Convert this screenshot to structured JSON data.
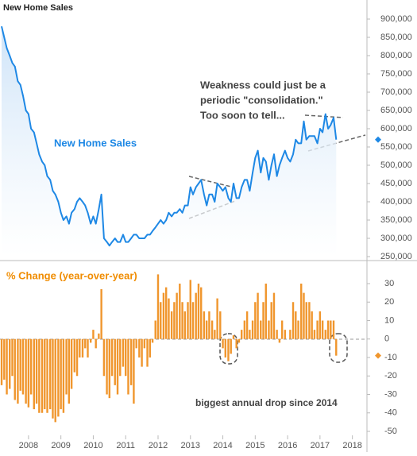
{
  "chart_data": [
    {
      "type": "line",
      "title": "New Home Sales",
      "annotations": [
        "Weakness could just be a",
        "periodic \"consolidation.\"",
        "Too soon to tell..."
      ],
      "x": [
        2007.17,
        2007.25,
        2007.33,
        2007.42,
        2007.5,
        2007.58,
        2007.67,
        2007.75,
        2007.83,
        2007.92,
        2008,
        2008.08,
        2008.17,
        2008.25,
        2008.33,
        2008.42,
        2008.5,
        2008.58,
        2008.67,
        2008.75,
        2008.83,
        2008.92,
        2009,
        2009.08,
        2009.17,
        2009.25,
        2009.33,
        2009.42,
        2009.5,
        2009.58,
        2009.67,
        2009.75,
        2009.83,
        2009.92,
        2010,
        2010.08,
        2010.17,
        2010.25,
        2010.33,
        2010.42,
        2010.5,
        2010.58,
        2010.67,
        2010.75,
        2010.83,
        2010.92,
        2011,
        2011.08,
        2011.17,
        2011.25,
        2011.33,
        2011.42,
        2011.5,
        2011.58,
        2011.67,
        2011.75,
        2011.83,
        2011.92,
        2012,
        2012.08,
        2012.17,
        2012.25,
        2012.33,
        2012.42,
        2012.5,
        2012.58,
        2012.67,
        2012.75,
        2012.83,
        2012.92,
        2013,
        2013.08,
        2013.17,
        2013.25,
        2013.33,
        2013.42,
        2013.5,
        2013.58,
        2013.67,
        2013.75,
        2013.83,
        2013.92,
        2014,
        2014.08,
        2014.17,
        2014.25,
        2014.33,
        2014.42,
        2014.5,
        2014.58,
        2014.67,
        2014.75,
        2014.83,
        2014.92,
        2015,
        2015.08,
        2015.17,
        2015.25,
        2015.33,
        2015.42,
        2015.5,
        2015.58,
        2015.67,
        2015.75,
        2015.83,
        2015.92,
        2016,
        2016.08,
        2016.17,
        2016.25,
        2016.33,
        2016.42,
        2016.5,
        2016.58,
        2016.67,
        2016.75,
        2016.83,
        2016.92,
        2017,
        2017.08,
        2017.17,
        2017.25,
        2017.33,
        2017.42,
        2017.5
      ],
      "series": [
        {
          "name": "New Home Sales",
          "color": "#1e88e5",
          "values": [
            880000,
            850000,
            820000,
            800000,
            780000,
            770000,
            730000,
            720000,
            690000,
            650000,
            640000,
            600000,
            590000,
            560000,
            530000,
            510000,
            500000,
            470000,
            460000,
            430000,
            420000,
            400000,
            370000,
            350000,
            360000,
            340000,
            370000,
            380000,
            400000,
            410000,
            400000,
            390000,
            370000,
            340000,
            360000,
            340000,
            380000,
            420000,
            300000,
            290000,
            280000,
            290000,
            300000,
            290000,
            290000,
            310000,
            290000,
            290000,
            300000,
            310000,
            310000,
            300000,
            300000,
            300000,
            310000,
            310000,
            320000,
            330000,
            340000,
            350000,
            340000,
            350000,
            370000,
            360000,
            370000,
            370000,
            380000,
            370000,
            390000,
            390000,
            440000,
            420000,
            440000,
            450000,
            460000,
            420000,
            390000,
            420000,
            420000,
            400000,
            450000,
            440000,
            430000,
            440000,
            410000,
            400000,
            450000,
            410000,
            410000,
            440000,
            460000,
            460000,
            430000,
            480000,
            520000,
            540000,
            480000,
            520000,
            510000,
            460000,
            500000,
            530000,
            470000,
            500000,
            520000,
            540000,
            520000,
            510000,
            530000,
            570000,
            560000,
            560000,
            620000,
            570000,
            580000,
            580000,
            580000,
            560000,
            600000,
            590000,
            640000,
            600000,
            610000,
            630000,
            570000
          ]
        }
      ],
      "xlim": [
        2007.12,
        2018.45
      ],
      "ylim": [
        250000,
        900000
      ],
      "yticks": [
        {
          "value": 250000,
          "label": "250,000"
        },
        {
          "value": 300000,
          "label": "300,000"
        },
        {
          "value": 350000,
          "label": "350,000"
        },
        {
          "value": 400000,
          "label": "400,000"
        },
        {
          "value": 450000,
          "label": "450,000"
        },
        {
          "value": 500000,
          "label": "500,000"
        },
        {
          "value": 550000,
          "label": "550,000"
        },
        {
          "value": 600000,
          "label": "600,000"
        },
        {
          "value": 650000,
          "label": "650,000"
        },
        {
          "value": 700000,
          "label": "700,000"
        },
        {
          "value": 750000,
          "label": "750,000"
        },
        {
          "value": 800000,
          "label": "800,000"
        },
        {
          "value": 850000,
          "label": "850,000"
        },
        {
          "value": 900000,
          "label": "900,000"
        }
      ]
    },
    {
      "type": "bar",
      "title": "% Change (year-over-year)",
      "annotations": [
        "biggest annual drop since 2014"
      ],
      "color": "#f0962d",
      "x": [
        2007.17,
        2007.25,
        2007.33,
        2007.42,
        2007.5,
        2007.58,
        2007.67,
        2007.75,
        2007.83,
        2007.92,
        2008,
        2008.08,
        2008.17,
        2008.25,
        2008.33,
        2008.42,
        2008.5,
        2008.58,
        2008.67,
        2008.75,
        2008.83,
        2008.92,
        2009,
        2009.08,
        2009.17,
        2009.25,
        2009.33,
        2009.42,
        2009.5,
        2009.58,
        2009.67,
        2009.75,
        2009.83,
        2009.92,
        2010,
        2010.08,
        2010.17,
        2010.25,
        2010.33,
        2010.42,
        2010.5,
        2010.58,
        2010.67,
        2010.75,
        2010.83,
        2010.92,
        2011,
        2011.08,
        2011.17,
        2011.25,
        2011.33,
        2011.42,
        2011.5,
        2011.58,
        2011.67,
        2011.75,
        2011.83,
        2011.92,
        2012,
        2012.08,
        2012.17,
        2012.25,
        2012.33,
        2012.42,
        2012.5,
        2012.58,
        2012.67,
        2012.75,
        2012.83,
        2012.92,
        2013,
        2013.08,
        2013.17,
        2013.25,
        2013.33,
        2013.42,
        2013.5,
        2013.58,
        2013.67,
        2013.75,
        2013.83,
        2013.92,
        2014,
        2014.08,
        2014.17,
        2014.25,
        2014.33,
        2014.42,
        2014.5,
        2014.58,
        2014.67,
        2014.75,
        2014.83,
        2014.92,
        2015,
        2015.08,
        2015.17,
        2015.25,
        2015.33,
        2015.42,
        2015.5,
        2015.58,
        2015.67,
        2015.75,
        2015.83,
        2015.92,
        2016,
        2016.08,
        2016.17,
        2016.25,
        2016.33,
        2016.42,
        2016.5,
        2016.58,
        2016.67,
        2016.75,
        2016.83,
        2016.92,
        2017,
        2017.08,
        2017.17,
        2017.25,
        2017.33,
        2017.42,
        2017.5
      ],
      "values": [
        -25,
        -22,
        -30,
        -27,
        -20,
        -33,
        -35,
        -28,
        -30,
        -35,
        -37,
        -30,
        -38,
        -35,
        -40,
        -40,
        -38,
        -40,
        -38,
        -43,
        -45,
        -42,
        -38,
        -40,
        -30,
        -35,
        -27,
        -18,
        -20,
        -10,
        -10,
        -5,
        -10,
        -2,
        5,
        -5,
        3,
        27,
        -20,
        -30,
        -32,
        -20,
        -25,
        -30,
        -20,
        -15,
        -20,
        -30,
        -25,
        -35,
        -5,
        -10,
        -15,
        -5,
        -15,
        -10,
        -2,
        10,
        35,
        20,
        25,
        28,
        22,
        15,
        20,
        25,
        30,
        20,
        15,
        20,
        32,
        20,
        25,
        30,
        28,
        15,
        10,
        15,
        10,
        5,
        22,
        15,
        -5,
        -10,
        -12,
        -8,
        2,
        -5,
        -2,
        5,
        10,
        15,
        5,
        10,
        20,
        25,
        10,
        20,
        30,
        10,
        20,
        25,
        5,
        -2,
        10,
        5,
        0,
        5,
        20,
        15,
        10,
        30,
        25,
        20,
        20,
        15,
        5,
        10,
        15,
        10,
        5,
        10,
        10,
        10,
        -9
      ],
      "xlim": [
        2007.12,
        2018.45
      ],
      "xticks": [
        2008,
        2009,
        2010,
        2011,
        2012,
        2013,
        2014,
        2015,
        2016,
        2017,
        2018
      ],
      "ylim": [
        -50,
        30
      ],
      "yticks": [
        -50,
        -40,
        -30,
        -20,
        -10,
        0,
        10,
        20,
        30
      ]
    }
  ]
}
